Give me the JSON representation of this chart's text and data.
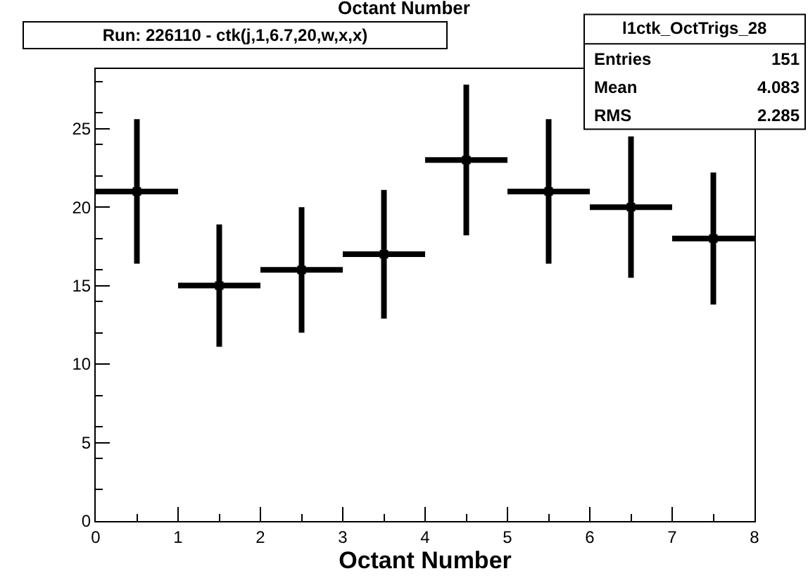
{
  "chart_data": {
    "type": "scatter",
    "title": "Octant Number",
    "xlabel": "Octant Number",
    "x": [
      0.5,
      1.5,
      2.5,
      3.5,
      4.5,
      5.5,
      6.5,
      7.5
    ],
    "values": [
      21,
      15,
      16,
      17,
      23,
      21,
      20,
      18
    ],
    "errors": [
      4.6,
      3.9,
      4.0,
      4.1,
      4.8,
      4.6,
      4.5,
      4.2
    ],
    "xerrors": [
      0.5,
      0.5,
      0.5,
      0.5,
      0.5,
      0.5,
      0.5,
      0.5
    ],
    "marker": "square",
    "color": "#000000",
    "xlim": [
      0,
      8
    ],
    "xticks": [
      0,
      1,
      2,
      3,
      4,
      5,
      6,
      7,
      8
    ],
    "ylim": [
      0,
      28.8
    ],
    "yticks": [
      0,
      5,
      10,
      15,
      20,
      25
    ],
    "annotations": [
      "Run: 226110 - ctk(j,1,6.7,20,w,x,x)",
      "l1ctk_OctTrigs_28",
      "Entries",
      "151",
      "Mean",
      "4.083",
      "RMS",
      "2.285"
    ]
  }
}
